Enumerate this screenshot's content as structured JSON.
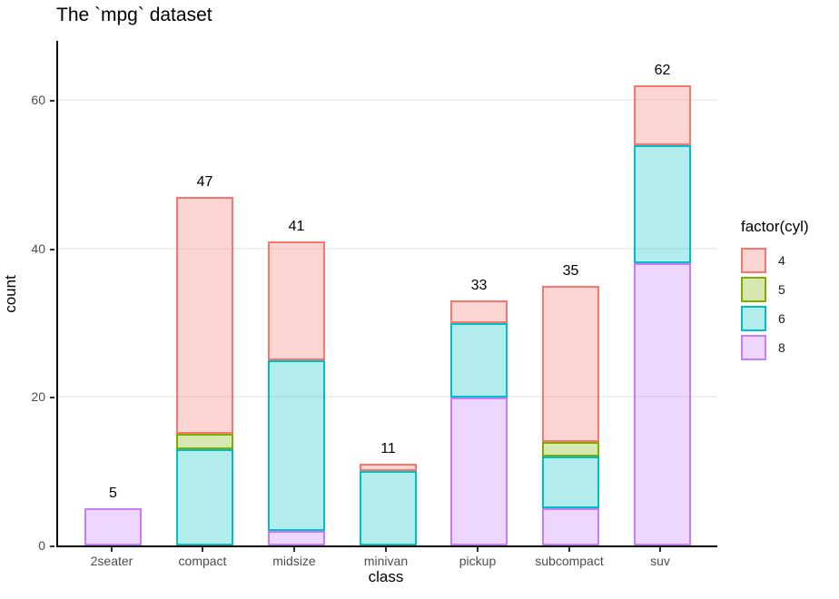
{
  "title": "The `mpg` dataset",
  "chart_data": {
    "type": "bar",
    "stacked": true,
    "title": "The `mpg` dataset",
    "xlabel": "class",
    "ylabel": "count",
    "categories": [
      "2seater",
      "compact",
      "midsize",
      "minivan",
      "pickup",
      "subcompact",
      "suv"
    ],
    "series": [
      {
        "name": "8",
        "stroke": "#C77CFF",
        "fill": "rgba(199,124,255,0.30)",
        "values": [
          5,
          0,
          2,
          0,
          20,
          5,
          38
        ]
      },
      {
        "name": "6",
        "stroke": "#00BFC4",
        "fill": "rgba(0,191,196,0.30)",
        "values": [
          0,
          13,
          23,
          10,
          10,
          7,
          16
        ]
      },
      {
        "name": "5",
        "stroke": "#7CAE00",
        "fill": "rgba(124,174,0,0.30)",
        "values": [
          0,
          2,
          0,
          0,
          0,
          2,
          0
        ]
      },
      {
        "name": "4",
        "stroke": "#F8766D",
        "fill": "rgba(248,118,109,0.30)",
        "values": [
          0,
          32,
          16,
          1,
          3,
          21,
          8
        ]
      }
    ],
    "totals": [
      5,
      47,
      41,
      11,
      33,
      35,
      62
    ],
    "yticks": [
      0,
      20,
      40,
      60
    ],
    "ylim": [
      0,
      68
    ],
    "grid": "major-y-only",
    "legend": {
      "title": "factor(cyl)",
      "position": "right",
      "entries": [
        {
          "label": "4",
          "stroke": "#F8766D",
          "fill": "rgba(248,118,109,0.30)"
        },
        {
          "label": "5",
          "stroke": "#7CAE00",
          "fill": "rgba(124,174,0,0.30)"
        },
        {
          "label": "6",
          "stroke": "#00BFC4",
          "fill": "rgba(0,191,196,0.30)"
        },
        {
          "label": "8",
          "stroke": "#C77CFF",
          "fill": "rgba(199,124,255,0.30)"
        }
      ]
    },
    "colors": {
      "axis_line": "#000000",
      "tick_mark": "#333333",
      "tick_label": "#4d4d4d",
      "gridline": "#efefef",
      "background": "#ffffff"
    }
  }
}
